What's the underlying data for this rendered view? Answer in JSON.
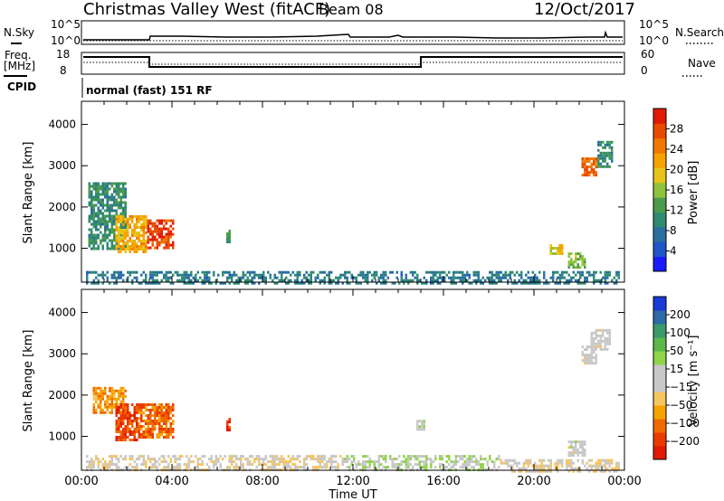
{
  "header": {
    "station": "Christmas Valley West (fitACF)",
    "beam": "Beam 08",
    "date": "12/Oct/2017"
  },
  "noise_panel": {
    "left_label": "N.Sky",
    "right_label": "N.Search",
    "left_ticks": [
      "10^5",
      "10^0"
    ],
    "right_ticks": [
      "10^5",
      "10^0"
    ]
  },
  "freq_panel": {
    "left_label_1": "Freq.",
    "left_label_2": "[MHz]",
    "right_label": "Nave",
    "left_ticks": [
      "18",
      "8"
    ],
    "right_ticks": [
      "60",
      "0"
    ]
  },
  "cpid": {
    "label": "CPID",
    "program": "normal (fast) 151 RF"
  },
  "chart_data": [
    {
      "type": "heatmap",
      "name": "power",
      "xlabel": "Time UT",
      "ylabel": "Slant Range [km]",
      "x_ticks": [
        "00:00",
        "04:00",
        "08:00",
        "12:00",
        "16:00",
        "20:00",
        "00:00"
      ],
      "x_range_hours": [
        0,
        24
      ],
      "y_range_km": [
        180,
        4560
      ],
      "y_ticks": [
        1000,
        2000,
        3000,
        4000
      ],
      "colorbar": {
        "label": "Power [dB]",
        "ticks": [
          "4",
          "8",
          "12",
          "16",
          "20",
          "24",
          "28"
        ],
        "range": [
          0,
          30
        ],
        "colors": [
          "#1a1aff",
          "#1f56c8",
          "#2a6fa0",
          "#2f8a72",
          "#4c9a4c",
          "#8fc23c",
          "#e8c41a",
          "#f5a300",
          "#f07a00",
          "#e84a00",
          "#e01a00"
        ]
      },
      "echo_regions": [
        {
          "t_start": 0.3,
          "t_end": 2.0,
          "r_start": 1000,
          "r_end": 2600,
          "value": 10
        },
        {
          "t_start": 1.5,
          "t_end": 2.9,
          "r_start": 900,
          "r_end": 1800,
          "value": 20
        },
        {
          "t_start": 2.9,
          "t_end": 4.1,
          "r_start": 1000,
          "r_end": 1700,
          "value": 27
        },
        {
          "t_start": 6.4,
          "t_end": 6.6,
          "r_start": 1150,
          "r_end": 1450,
          "value": 12
        },
        {
          "t_start": 20.7,
          "t_end": 21.3,
          "r_start": 900,
          "r_end": 1100,
          "value": 18
        },
        {
          "t_start": 21.5,
          "t_end": 22.3,
          "r_start": 550,
          "r_end": 900,
          "value": 14
        },
        {
          "t_start": 22.1,
          "t_end": 22.8,
          "r_start": 2800,
          "r_end": 3200,
          "value": 24
        },
        {
          "t_start": 22.8,
          "t_end": 23.5,
          "r_start": 3000,
          "r_end": 3600,
          "value": 10
        },
        {
          "t_start": 0.2,
          "t_end": 23.8,
          "r_start": 180,
          "r_end": 450,
          "value": 8
        }
      ]
    },
    {
      "type": "heatmap",
      "name": "velocity",
      "xlabel": "Time UT",
      "ylabel": "Slant Range [km]",
      "x_ticks": [
        "00:00",
        "04:00",
        "08:00",
        "12:00",
        "16:00",
        "20:00",
        "00:00"
      ],
      "x_range_hours": [
        0,
        24
      ],
      "y_range_km": [
        180,
        4560
      ],
      "y_ticks": [
        1000,
        2000,
        3000,
        4000
      ],
      "colorbar": {
        "label": "Velocity [m s⁻¹]",
        "ticks": [
          "200",
          "100",
          "50",
          "15",
          "−15",
          "−50",
          "−100",
          "−200"
        ],
        "range": [
          -250,
          250
        ],
        "colors": [
          "#e01a00",
          "#ea3a00",
          "#f06a00",
          "#f5a300",
          "#f5c560",
          "#c8c8c8",
          "#c8c8c8",
          "#8fd44a",
          "#5cb84a",
          "#3a9a6a",
          "#2d6aa8",
          "#1a3ad8"
        ]
      },
      "echo_regions": [
        {
          "t_start": 0.5,
          "t_end": 2.0,
          "r_start": 1600,
          "r_end": 2200,
          "value": -120
        },
        {
          "t_start": 1.5,
          "t_end": 2.5,
          "r_start": 900,
          "r_end": 1800,
          "value": -180
        },
        {
          "t_start": 2.5,
          "t_end": 4.1,
          "r_start": 1000,
          "r_end": 1800,
          "value": -150
        },
        {
          "t_start": 6.4,
          "t_end": 6.6,
          "r_start": 1150,
          "r_end": 1450,
          "value": -200
        },
        {
          "t_start": 14.8,
          "t_end": 15.2,
          "r_start": 1200,
          "r_end": 1400,
          "value": 40
        },
        {
          "t_start": 21.5,
          "t_end": 22.3,
          "r_start": 550,
          "r_end": 900,
          "value": 0
        },
        {
          "t_start": 22.1,
          "t_end": 22.8,
          "r_start": 2800,
          "r_end": 3200,
          "value": 0
        },
        {
          "t_start": 22.5,
          "t_end": 23.4,
          "r_start": 3100,
          "r_end": 3600,
          "value": 0
        },
        {
          "t_start": 0.2,
          "t_end": 11.5,
          "r_start": 180,
          "r_end": 550,
          "value": -30
        },
        {
          "t_start": 11.5,
          "t_end": 18.5,
          "r_start": 180,
          "r_end": 550,
          "value": 30
        },
        {
          "t_start": 18.5,
          "t_end": 23.8,
          "r_start": 180,
          "r_end": 450,
          "value": -30
        }
      ]
    }
  ]
}
